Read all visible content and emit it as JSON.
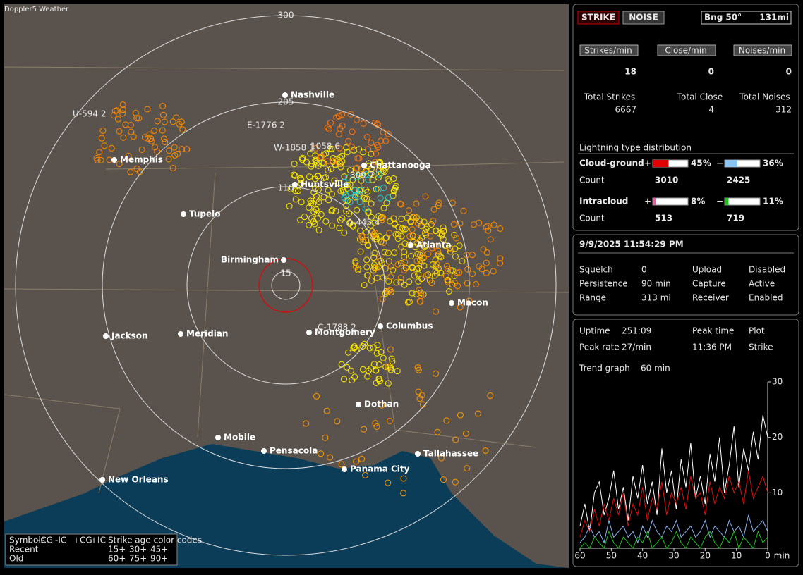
{
  "app_title": "Doppler5 Weather",
  "map": {
    "rings": [
      "300",
      "205",
      "110",
      "15"
    ],
    "cities": [
      "Nashville",
      "Memphis",
      "Chattanooga",
      "Huntsville",
      "Tupelo",
      "Birmingham",
      "Atlanta",
      "Macon",
      "Jackson",
      "Meridian",
      "Montgomery",
      "Columbus",
      "Dothan",
      "Mobile",
      "Pensacola",
      "Tallahassee",
      "Panama City",
      "New Orleans"
    ],
    "annotations": [
      "U-594 2",
      "E-1776 2",
      "W-1858 1",
      "1058 6",
      "309 7",
      "A-445 4",
      "C-1788 2"
    ],
    "legend": {
      "symbols_label": "Symbols",
      "symbols": [
        "-CG",
        "-IC",
        "+CG",
        "+IC"
      ],
      "age_label": "Strike age color codes",
      "recent": "Recent",
      "old": "Old",
      "recent_ages": [
        "15+",
        "30+",
        "45+"
      ],
      "old_ages": [
        "60+",
        "75+",
        "90+"
      ]
    }
  },
  "status": {
    "buttons": [
      "STRIKE",
      "NOISE"
    ],
    "bearing": "Bng 50°",
    "distance": "131mi",
    "rate_labels": [
      "Strikes/min",
      "Close/min",
      "Noises/min"
    ],
    "rates": [
      18,
      0,
      0
    ],
    "total_labels": [
      "Total Strikes",
      "Total Close",
      "Total Noises"
    ],
    "totals": [
      6667,
      4,
      312
    ]
  },
  "distribution": {
    "title": "Lightning type distribution",
    "count_label": "Count",
    "signs": [
      "+",
      "−"
    ],
    "rows": [
      {
        "name": "Cloud-ground",
        "positive": {
          "value": 45,
          "label": "45%"
        },
        "negative": {
          "value": 36,
          "label": "36%"
        },
        "counts": [
          3010,
          2425
        ]
      },
      {
        "name": "Intracloud",
        "positive": {
          "value": 8,
          "label": "8%"
        },
        "negative": {
          "value": 11,
          "label": "11%"
        },
        "counts": [
          513,
          719
        ]
      }
    ]
  },
  "settings": {
    "datetime": "9/9/2025 11:54:29 PM",
    "rows": [
      [
        "Squelch",
        "0",
        "Upload",
        "Disabled"
      ],
      [
        "Persistence",
        "90 min",
        "Capture",
        "Active"
      ],
      [
        "Range",
        "313 mi",
        "Receiver",
        "Enabled"
      ]
    ]
  },
  "stats": {
    "rows": [
      [
        "Uptime",
        "251:09",
        "Peak time",
        "Plot"
      ],
      [
        "Peak rate",
        "27/min",
        "11:36 PM",
        "Strike"
      ]
    ],
    "trend_label": "Trend graph",
    "trend_value": "60 min"
  },
  "trend": {
    "type": "line",
    "xlim": [
      60,
      0
    ],
    "xticks": [
      60,
      50,
      40,
      30,
      20,
      10,
      0
    ],
    "x_unit": "min",
    "ylim": [
      0,
      30
    ],
    "yticks": [
      10,
      20,
      30
    ],
    "series": [
      {
        "color": "#ffffff",
        "values": [
          4,
          8,
          3,
          10,
          12,
          6,
          9,
          14,
          7,
          11,
          5,
          13,
          9,
          15,
          8,
          12,
          6,
          18,
          10,
          14,
          7,
          16,
          11,
          19,
          9,
          13,
          8,
          17,
          12,
          20,
          10,
          15,
          22,
          11,
          18,
          14,
          21,
          16,
          24,
          20
        ]
      },
      {
        "color": "#e01010",
        "values": [
          2,
          5,
          3,
          7,
          4,
          8,
          5,
          9,
          6,
          10,
          4,
          8,
          6,
          11,
          5,
          9,
          7,
          12,
          6,
          10,
          8,
          11,
          7,
          13,
          9,
          10,
          6,
          12,
          8,
          11,
          9,
          13,
          10,
          12,
          8,
          14,
          9,
          11,
          13,
          10
        ]
      },
      {
        "color": "#8ab4f0",
        "values": [
          1,
          2,
          4,
          2,
          3,
          1,
          5,
          2,
          3,
          4,
          2,
          3,
          1,
          4,
          2,
          5,
          3,
          2,
          4,
          3,
          5,
          2,
          3,
          4,
          2,
          3,
          5,
          2,
          4,
          3,
          2,
          5,
          3,
          4,
          2,
          6,
          3,
          4,
          5,
          3
        ]
      },
      {
        "color": "#20c020",
        "values": [
          0,
          1,
          0,
          2,
          1,
          0,
          3,
          1,
          0,
          2,
          1,
          0,
          2,
          1,
          3,
          0,
          1,
          2,
          0,
          1,
          3,
          1,
          0,
          2,
          1,
          0,
          2,
          3,
          1,
          0,
          2,
          1,
          3,
          0,
          2,
          1,
          0,
          3,
          1,
          2
        ]
      }
    ]
  }
}
